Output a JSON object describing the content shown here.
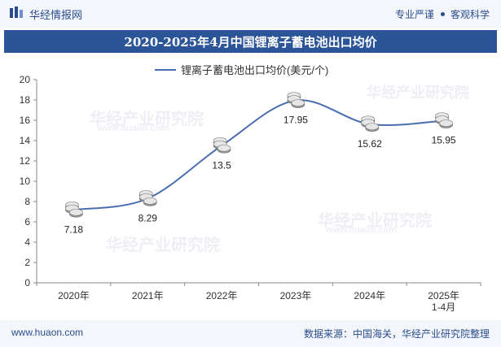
{
  "header": {
    "brand": "华经情报网",
    "tags": [
      "专业严谨",
      "客观科学"
    ]
  },
  "title": "2020-2025年4月中国锂离子蓄电池出口均价",
  "watermark": {
    "text": "华经产业研究院",
    "url": "www.huaon.com"
  },
  "chart_data": {
    "type": "line",
    "title": "2020-2025年4月中国锂离子蓄电池出口均价",
    "categories": [
      "2020年",
      "2021年",
      "2022年",
      "2023年",
      "2024年",
      "2025年 1-4月"
    ],
    "series": [
      {
        "name": "锂离子蓄电池出口均价(美元/个)",
        "values": [
          7.18,
          8.29,
          13.5,
          17.95,
          15.62,
          15.95
        ],
        "labels": [
          "7.18",
          "8.29",
          "13.5",
          "17.95",
          "15.62",
          "15.95"
        ],
        "color": "#4a6db0"
      }
    ],
    "ylim": [
      0,
      20
    ],
    "yticks": [
      0,
      2,
      4,
      6,
      8,
      10,
      12,
      14,
      16,
      18,
      20
    ],
    "legend": "top-center",
    "grid": false,
    "xlabel": "",
    "ylabel": ""
  },
  "footer": {
    "website": "www.huaon.com",
    "source": "数据来源：中国海关，华经产业研究院整理"
  }
}
